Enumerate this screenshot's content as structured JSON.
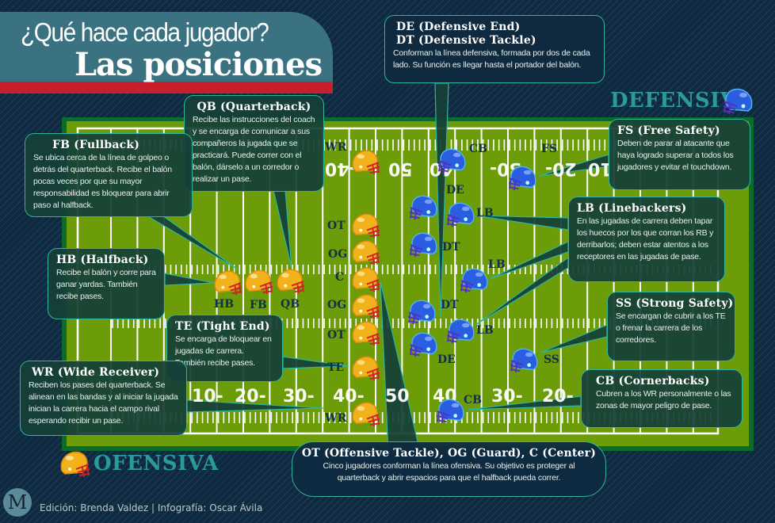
{
  "header": {
    "question": "¿Qué hace cada jugador?",
    "title": "Las posiciones"
  },
  "teams": {
    "defense": "DEFENSIVA",
    "offense": "OFENSIVA"
  },
  "colors": {
    "offense_helmet": "#f2b21c",
    "defense_helmet": "#2a5de0",
    "field": "#6c9c08",
    "callout_border": "#2fb59c",
    "title_bar": "#3b7282",
    "red_bar": "#c8202a"
  },
  "field": {
    "numbers_top": [
      "-40",
      "50",
      "-40",
      "30-",
      "20-",
      "10"
    ],
    "numbers_bottom": [
      "10-",
      "20-",
      "30-",
      "40-",
      "50",
      "40",
      "30-",
      "20-"
    ]
  },
  "offense_labels": {
    "wr_top": "WR",
    "ot_top": "OT",
    "og_top": "OG",
    "c": "C",
    "og_bottom": "OG",
    "ot_bottom": "OT",
    "te": "TE",
    "wr_bottom": "WR",
    "hb": "HB",
    "fb": "FB",
    "qb": "QB"
  },
  "defense_labels": {
    "cb_top": "CB",
    "de_top": "DE",
    "lb_top": "LB",
    "dt_top": "DT",
    "lb_mid": "LB",
    "dt_bottom": "DT",
    "lb_bottom": "LB",
    "de_bottom": "DE",
    "ss": "SS",
    "cb_bottom": "CB",
    "fs": "FS"
  },
  "callouts": {
    "qb": {
      "title": "QB (Quarterback)",
      "text": "Recibe las instrucciones del coach y se encarga de comunicar a sus compañeros la jugada que se practicará. Puede correr con el balón, dárselo a un corredor o realizar un pase."
    },
    "fb": {
      "title": "FB (Fullback)",
      "text": "Se ubica cerca de la línea de golpeo o detrás del quarterback. Recibe el balón pocas veces por que su mayor responsabilidad es bloquear para abrir paso al halfback."
    },
    "hb": {
      "title": "HB (Halfback)",
      "text": "Recibe el balón y corre para ganar yardas. También recibe pases."
    },
    "te": {
      "title": "TE (Tight End)",
      "text": "Se encarga de bloquear en jugadas de carrera. También recibe pases."
    },
    "wr": {
      "title": "WR (Wide Receiver)",
      "text": "Reciben los pases del quarterback. Se alinean en las bandas y al iniciar la jugada inician la carrera hacia el campo rival esperando recibir un pase."
    },
    "de_dt": {
      "title1": "DE (Defensive End)",
      "title2": "DT (Defensive Tackle)",
      "text": "Conforman la línea defensiva, formada por dos de cada lado. Su función es llegar hasta el portador del balón."
    },
    "fs": {
      "title": "FS (Free Safety)",
      "text": "Deben de parar al atacante que haya logrado superar a todos los jugadores y evitar el touchdown."
    },
    "lb": {
      "title": "LB (Linebackers)",
      "text": "En las jugadas de carrera deben tapar los huecos por los que corran los RB y derribarlos; deben estar atentos a los receptores en las jugadas de pase."
    },
    "ss": {
      "title": "SS (Strong Safety)",
      "text": "Se encargan de cubrir a los TE o frenar la carrera de los corredores."
    },
    "cb": {
      "title": "CB (Cornerbacks)",
      "text": "Cubren a los WR personalmente o las zonas de mayor peligro de pase."
    },
    "ol": {
      "title": "OT (Offensive Tackle), OG (Guard), C (Center)",
      "text": "Cinco jugadores conforman la línea ofensiva. Su objetivo es proteger al quarterback y abrir espacios para que el halfback pueda correr."
    }
  },
  "footer": {
    "logo": "M",
    "credits": "Edición: Brenda Valdez | Infografía: Oscar Ávila"
  }
}
